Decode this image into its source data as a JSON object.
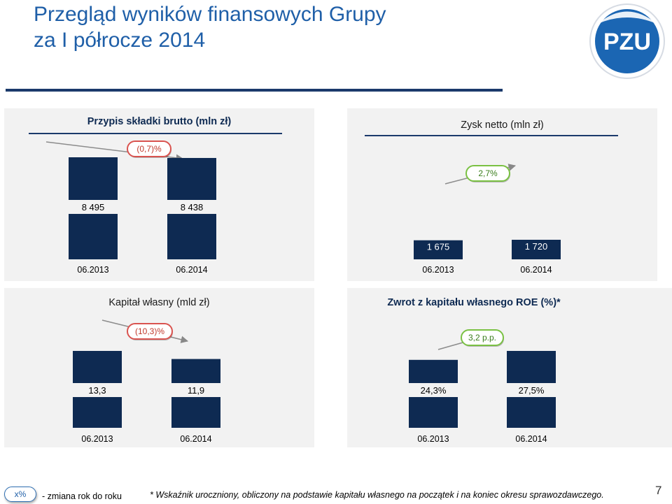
{
  "header": {
    "title_line1": "Przegląd wyników finansowych Grupy",
    "title_line2": "za I półrocze 2014"
  },
  "logo": {
    "text": "PZU",
    "colors": {
      "outer": "#1b66b3",
      "inner": "#ffffff"
    }
  },
  "colors": {
    "bar": "#0e2a52",
    "panel_bg": "#f2f2f2",
    "negative_badge": "#d9534f",
    "positive_badge": "#7ac143",
    "title": "#1f5fa8"
  },
  "chart_data": [
    {
      "type": "bar",
      "title": "Przypis składki brutto (mln zł)",
      "categories": [
        "06.2013",
        "06.2014"
      ],
      "values": [
        8495,
        8438
      ],
      "value_labels": [
        "8 495",
        "8 438"
      ],
      "change_label": "(0,7)%",
      "change_sign": "negative"
    },
    {
      "type": "bar",
      "title": "Zysk netto (mln zł)",
      "categories": [
        "06.2013",
        "06.2014"
      ],
      "values": [
        1675,
        1720
      ],
      "value_labels": [
        "1 675",
        "1 720"
      ],
      "change_label": "2,7%",
      "change_sign": "positive"
    },
    {
      "type": "bar",
      "title": "Kapitał własny (mld zł)",
      "categories": [
        "06.2013",
        "06.2014"
      ],
      "values": [
        13.3,
        11.9
      ],
      "value_labels": [
        "13,3",
        "11,9"
      ],
      "change_label": "(10,3)%",
      "change_sign": "negative"
    },
    {
      "type": "bar",
      "title": "Zwrot z kapitału własnego ROE (%)*",
      "categories": [
        "06.2013",
        "06.2014"
      ],
      "values": [
        24.3,
        27.5
      ],
      "value_labels": [
        "24,3%",
        "27,5%"
      ],
      "change_label": "3,2 p.p.",
      "change_sign": "positive"
    }
  ],
  "footer": {
    "legend_badge": "x%",
    "legend_text": "- zmiana rok do roku",
    "footnote": "* Wskaźnik uroczniony, obliczony na podstawie kapitału własnego na początek i na koniec okresu sprawozdawczego.",
    "page_number": "7"
  }
}
